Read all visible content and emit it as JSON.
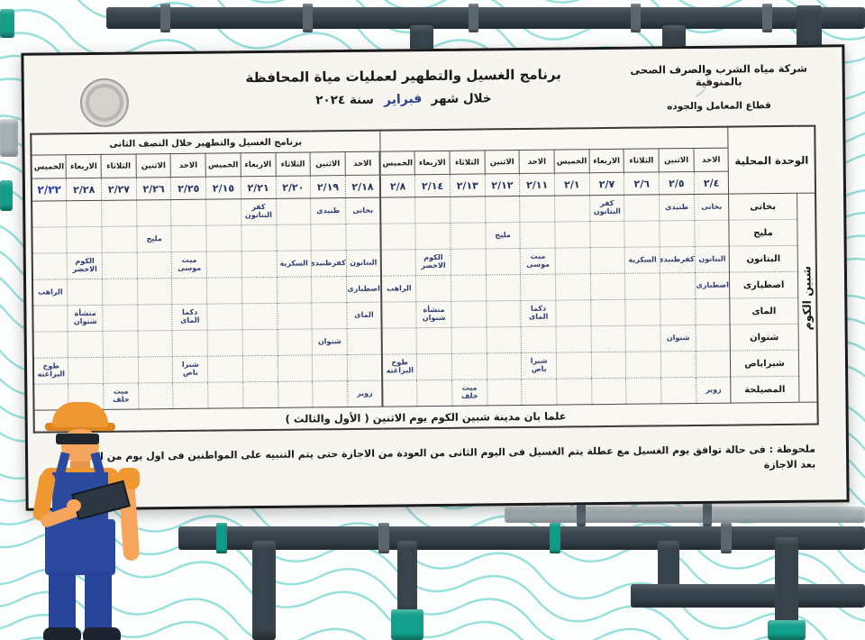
{
  "header": {
    "company_line1": "شركة مياه الشرب والصرف الصحى بالمنوفية",
    "company_line2": "قطاع المعامل والجوده",
    "title": "برنامج الغسيل والتطهير لعمليات مياة المحافظة",
    "subtitle_prefix": "خلال شهر",
    "subtitle_month": "فبراير",
    "subtitle_suffix": "سنة ٢٠٢٤"
  },
  "table": {
    "corner_header": "الوحدة المحلية",
    "district_label": "شبين الكوم",
    "second_half_banner": "برنامج الغسيل والتطهير خلال النصف الثانى",
    "columns": [
      {
        "day": "الاحد",
        "date": "٢/٤"
      },
      {
        "day": "الاثنين",
        "date": "٢/٥"
      },
      {
        "day": "الثلاثاء",
        "date": "٢/٦"
      },
      {
        "day": "الاربعاء",
        "date": "٢/٧"
      },
      {
        "day": "الخميس",
        "date": "٢/١"
      },
      {
        "day": "الاحد",
        "date": "٢/١١"
      },
      {
        "day": "الاثنين",
        "date": "٢/١٢"
      },
      {
        "day": "الثلاثاء",
        "date": "٢/١٣"
      },
      {
        "day": "الاربعاء",
        "date": "٢/١٤"
      },
      {
        "day": "الخميس",
        "date": "٢/٨"
      },
      {
        "day": "الاحد",
        "date": "٢/١٨"
      },
      {
        "day": "الاثنين",
        "date": "٢/١٩"
      },
      {
        "day": "الثلاثاء",
        "date": "٢/٢٠"
      },
      {
        "day": "الاربعاء",
        "date": "٢/٢١"
      },
      {
        "day": "الخميس",
        "date": "٢/١٥"
      },
      {
        "day": "الاحد",
        "date": "٢/٢٥"
      },
      {
        "day": "الاثنين",
        "date": "٢/٢٦"
      },
      {
        "day": "الثلاثاء",
        "date": "٢/٢٧"
      },
      {
        "day": "الاربعاء",
        "date": "٢/٢٨"
      },
      {
        "day": "الخميس",
        "date": "٢/٢٢",
        "ink": "blue"
      }
    ],
    "rows": [
      {
        "unit": "بخاتى",
        "cells": [
          "بخاتى",
          "طنبدى",
          "",
          "كفر البتانون",
          "",
          "",
          "",
          "",
          "",
          "",
          "بخاتى",
          "طنبدى",
          "",
          "كفر البتانون",
          "",
          "",
          "",
          "",
          "",
          ""
        ]
      },
      {
        "unit": "مليج",
        "cells": [
          "",
          "",
          "",
          "",
          "",
          "",
          "مليج",
          "",
          "",
          "",
          "",
          "",
          "",
          "",
          "",
          "",
          "مليج",
          "",
          "",
          ""
        ]
      },
      {
        "unit": "البتانون",
        "cells": [
          "البتانون",
          "كفرطنبدى",
          "السكرية",
          "",
          "",
          "ميت موسى",
          "",
          "",
          "الكوم الاخضر",
          "",
          "البتانون",
          "كفرطنبدى",
          "السكرية",
          "",
          "",
          "ميت موسى",
          "",
          "",
          "الكوم الاخضر",
          ""
        ]
      },
      {
        "unit": "اصطبارى",
        "cells": [
          "اصطبارى",
          "",
          "",
          "",
          "",
          "",
          "",
          "",
          "",
          "الراهب",
          "اصطبارى",
          "",
          "",
          "",
          "",
          "",
          "",
          "",
          "",
          "الراهب"
        ]
      },
      {
        "unit": "الماى",
        "cells": [
          "",
          "",
          "",
          "",
          "",
          "دكما الماى",
          "",
          "",
          "منشأة شنوان",
          "",
          "الماى",
          "",
          "",
          "",
          "",
          "دكما الماى",
          "",
          "",
          "منشأة شنوان",
          ""
        ]
      },
      {
        "unit": "شنوان",
        "cells": [
          "",
          "شنوان",
          "",
          "",
          "",
          "",
          "",
          "",
          "",
          "",
          "",
          "شنوان",
          "",
          "",
          "",
          "",
          "",
          "",
          "",
          ""
        ]
      },
      {
        "unit": "شبراباص",
        "cells": [
          "",
          "",
          "",
          "",
          "",
          "شبرا باص",
          "",
          "",
          "",
          "طوخ البراغته",
          "",
          "",
          "",
          "",
          "",
          "شبرا باص",
          "",
          "",
          "",
          "طوخ البراغته"
        ]
      },
      {
        "unit": "المصيلحة",
        "cells": [
          "زوير",
          "",
          "",
          "",
          "",
          "",
          "",
          "ميت خلف",
          "",
          "",
          "زوير",
          "",
          "",
          "",
          "",
          "",
          "",
          "ميت خلف",
          "",
          ""
        ]
      }
    ],
    "footer_note": "علما بان مدينة شبين الكوم يوم الاثنين ( الأول والثالث )"
  },
  "note": "ملحوظة : فى حالة توافق يوم الغسيل مع عطلة يتم الغسيل فى اليوم الثانى من العودة من الاجازة حتى يتم التنبيه على المواطنين فى اول يوم من العودة بعد الاجازة",
  "colors": {
    "accent_teal": "#4fc9c2",
    "pipe": "#39454e",
    "valve": "#12a18c",
    "ink_blue": "#2337b8"
  }
}
